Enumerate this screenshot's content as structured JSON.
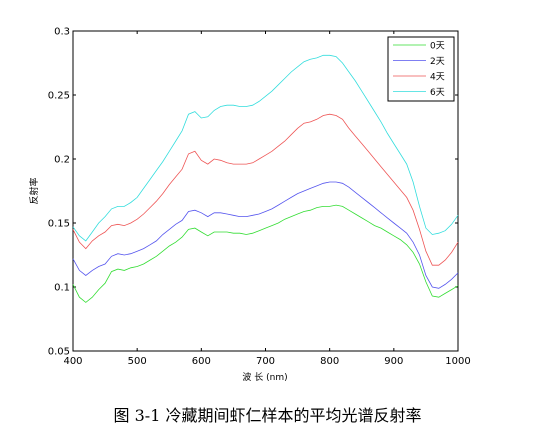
{
  "caption": "图 3-1 冷藏期间虾仁样本的平均光谱反射率",
  "colors": {
    "axis": "#000000",
    "background": "#ffffff"
  },
  "chart_data": {
    "type": "line",
    "title": "",
    "xlabel": "波 长 (nm)",
    "ylabel": "反射率",
    "xlim": [
      400,
      1000
    ],
    "ylim": [
      0.05,
      0.3
    ],
    "xticks": [
      400,
      500,
      600,
      700,
      800,
      900,
      1000
    ],
    "yticks": [
      0.05,
      0.1,
      0.15,
      0.2,
      0.25,
      0.3
    ],
    "xtick_labels": [
      "400",
      "500",
      "600",
      "700",
      "800",
      "900",
      "1000"
    ],
    "ytick_labels": [
      "0.05",
      "0.1",
      "0.15",
      "0.2",
      "0.25",
      "0.3"
    ],
    "grid": false,
    "legend_position": "top-right",
    "x": [
      400,
      410,
      420,
      430,
      440,
      450,
      460,
      470,
      480,
      490,
      500,
      510,
      520,
      530,
      540,
      550,
      560,
      570,
      580,
      590,
      600,
      610,
      620,
      630,
      640,
      650,
      660,
      670,
      680,
      690,
      700,
      710,
      720,
      730,
      740,
      750,
      760,
      770,
      780,
      790,
      800,
      810,
      820,
      830,
      840,
      850,
      860,
      870,
      880,
      890,
      900,
      910,
      920,
      930,
      940,
      950,
      960,
      970,
      980,
      990,
      1000
    ],
    "series": [
      {
        "name": "0天",
        "color": "#33dd33",
        "values": [
          0.102,
          0.092,
          0.088,
          0.092,
          0.098,
          0.103,
          0.112,
          0.114,
          0.113,
          0.115,
          0.116,
          0.118,
          0.121,
          0.124,
          0.128,
          0.132,
          0.135,
          0.139,
          0.145,
          0.146,
          0.143,
          0.14,
          0.143,
          0.143,
          0.143,
          0.142,
          0.142,
          0.141,
          0.142,
          0.144,
          0.146,
          0.148,
          0.15,
          0.153,
          0.155,
          0.157,
          0.159,
          0.16,
          0.162,
          0.163,
          0.163,
          0.164,
          0.163,
          0.16,
          0.157,
          0.154,
          0.151,
          0.148,
          0.146,
          0.143,
          0.14,
          0.137,
          0.133,
          0.127,
          0.118,
          0.104,
          0.093,
          0.092,
          0.095,
          0.098,
          0.101
        ]
      },
      {
        "name": "2天",
        "color": "#5555ee",
        "values": [
          0.122,
          0.113,
          0.109,
          0.113,
          0.116,
          0.118,
          0.124,
          0.126,
          0.125,
          0.126,
          0.128,
          0.13,
          0.133,
          0.136,
          0.141,
          0.145,
          0.149,
          0.152,
          0.159,
          0.16,
          0.158,
          0.155,
          0.158,
          0.158,
          0.157,
          0.156,
          0.155,
          0.155,
          0.156,
          0.157,
          0.159,
          0.161,
          0.164,
          0.167,
          0.17,
          0.173,
          0.175,
          0.177,
          0.179,
          0.181,
          0.182,
          0.182,
          0.181,
          0.178,
          0.174,
          0.17,
          0.166,
          0.162,
          0.158,
          0.154,
          0.15,
          0.146,
          0.142,
          0.135,
          0.125,
          0.109,
          0.1,
          0.099,
          0.102,
          0.106,
          0.111
        ]
      },
      {
        "name": "4天",
        "color": "#ee5555",
        "values": [
          0.145,
          0.135,
          0.13,
          0.136,
          0.14,
          0.143,
          0.148,
          0.149,
          0.148,
          0.15,
          0.153,
          0.157,
          0.162,
          0.167,
          0.173,
          0.18,
          0.186,
          0.192,
          0.204,
          0.206,
          0.199,
          0.196,
          0.2,
          0.199,
          0.197,
          0.196,
          0.196,
          0.196,
          0.197,
          0.2,
          0.203,
          0.206,
          0.21,
          0.214,
          0.219,
          0.224,
          0.228,
          0.229,
          0.231,
          0.234,
          0.235,
          0.234,
          0.231,
          0.224,
          0.218,
          0.212,
          0.206,
          0.2,
          0.194,
          0.188,
          0.182,
          0.176,
          0.17,
          0.16,
          0.145,
          0.128,
          0.117,
          0.117,
          0.121,
          0.127,
          0.135
        ]
      },
      {
        "name": "6天",
        "color": "#33dddd",
        "values": [
          0.147,
          0.14,
          0.136,
          0.143,
          0.15,
          0.155,
          0.161,
          0.163,
          0.163,
          0.166,
          0.17,
          0.177,
          0.184,
          0.191,
          0.198,
          0.206,
          0.214,
          0.222,
          0.235,
          0.237,
          0.232,
          0.233,
          0.238,
          0.241,
          0.242,
          0.242,
          0.241,
          0.241,
          0.242,
          0.245,
          0.249,
          0.253,
          0.258,
          0.263,
          0.268,
          0.272,
          0.276,
          0.278,
          0.279,
          0.281,
          0.281,
          0.28,
          0.275,
          0.268,
          0.261,
          0.253,
          0.245,
          0.237,
          0.229,
          0.22,
          0.212,
          0.204,
          0.196,
          0.182,
          0.163,
          0.146,
          0.141,
          0.142,
          0.144,
          0.149,
          0.156
        ]
      }
    ]
  }
}
